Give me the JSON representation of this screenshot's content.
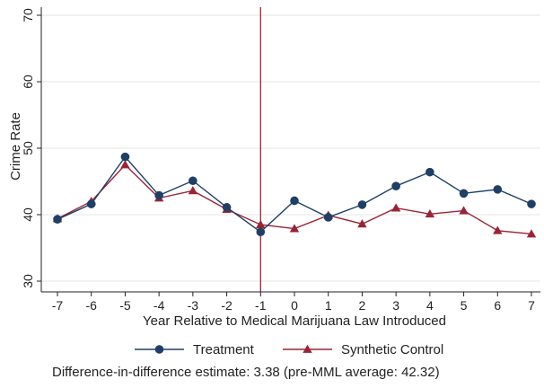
{
  "chart_data": {
    "type": "line",
    "xlabel": "Year Relative to Medical Marijuana Law Introduced",
    "ylabel": "Crime Rate",
    "x": [
      -7,
      -6,
      -5,
      -4,
      -3,
      -2,
      -1,
      0,
      1,
      2,
      3,
      4,
      5,
      6,
      7
    ],
    "xlim": [
      -7,
      7
    ],
    "ylim": [
      30,
      70
    ],
    "yticks": [
      30,
      40,
      50,
      60,
      70
    ],
    "series": [
      {
        "name": "Treatment",
        "color": "#1f3f66",
        "marker": "circle",
        "values": [
          39.3,
          41.6,
          48.7,
          42.9,
          45.1,
          41.1,
          37.4,
          42.1,
          39.6,
          41.5,
          44.3,
          46.4,
          43.2,
          43.8,
          41.6
        ]
      },
      {
        "name": "Synthetic Control",
        "color": "#9b2335",
        "marker": "triangle",
        "values": [
          39.4,
          42.0,
          47.5,
          42.5,
          43.6,
          40.8,
          38.5,
          37.9,
          39.9,
          38.6,
          41.0,
          40.1,
          40.6,
          37.6,
          37.1
        ]
      }
    ],
    "reference_line": {
      "x": -1,
      "color": "#9b2335"
    },
    "legend": {
      "placement": "bottom"
    },
    "grid": true,
    "note": "Difference-in-difference estimate: 3.38 (pre-MML average: 42.32)"
  }
}
